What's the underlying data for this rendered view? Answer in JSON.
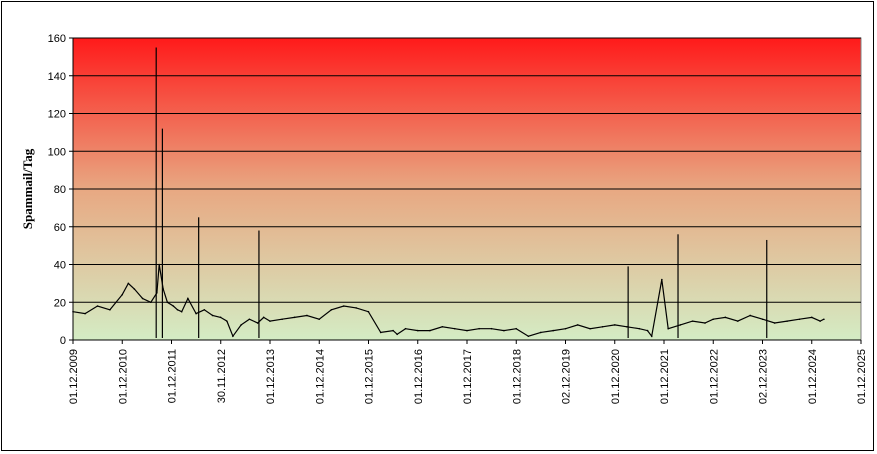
{
  "chart_data": {
    "type": "line",
    "title": "",
    "xlabel": "",
    "ylabel": "Spammail/Tag",
    "ylim": [
      0,
      160
    ],
    "yticks": [
      0,
      20,
      40,
      60,
      80,
      100,
      120,
      140,
      160
    ],
    "xlim": [
      "2009-12-01",
      "2025-12-01"
    ],
    "xtick_labels": [
      "01.12.2009",
      "01.12.2010",
      "01.12.2011",
      "30.11.2012",
      "01.12.2013",
      "01.12.2014",
      "01.12.2015",
      "01.12.2016",
      "01.12.2017",
      "01.12.2018",
      "02.12.2019",
      "01.12.2020",
      "01.12.2021",
      "01.12.2022",
      "02.12.2023",
      "01.12.2024",
      "01.12.2025"
    ],
    "grid": true,
    "legend": "none",
    "background_gradient": {
      "top": "#ff1a1a",
      "middle": "#e8a882",
      "bottom": "#d4ecc4"
    },
    "line_color": "#000000",
    "series": [
      {
        "name": "",
        "x": [
          "2009-12-01",
          "2010-03-01",
          "2010-06-01",
          "2010-09-01",
          "2010-12-01",
          "2011-01-15",
          "2011-03-01",
          "2011-05-01",
          "2011-07-01",
          "2011-08-15",
          "2011-09-01",
          "2011-10-01",
          "2011-11-01",
          "2011-12-15",
          "2012-01-15",
          "2012-02-15",
          "2012-04-01",
          "2012-06-01",
          "2012-08-01",
          "2012-10-01",
          "2012-11-30",
          "2013-01-15",
          "2013-03-01",
          "2013-05-01",
          "2013-07-01",
          "2013-09-01",
          "2013-10-15",
          "2013-12-01",
          "2014-03-01",
          "2014-06-01",
          "2014-09-01",
          "2014-12-01",
          "2015-03-01",
          "2015-06-01",
          "2015-09-01",
          "2015-12-01",
          "2016-03-01",
          "2016-06-01",
          "2016-07-01",
          "2016-09-01",
          "2016-12-01",
          "2017-03-01",
          "2017-06-01",
          "2017-09-01",
          "2017-12-01",
          "2018-03-01",
          "2018-06-01",
          "2018-09-01",
          "2018-12-01",
          "2019-03-01",
          "2019-06-01",
          "2019-09-01",
          "2019-12-02",
          "2020-03-01",
          "2020-06-01",
          "2020-09-01",
          "2020-12-01",
          "2021-03-01",
          "2021-06-01",
          "2021-08-01",
          "2021-09-01",
          "2021-11-15",
          "2022-01-01",
          "2022-04-01",
          "2022-07-01",
          "2022-10-01",
          "2022-12-01",
          "2023-03-01",
          "2023-06-01",
          "2023-09-01",
          "2023-12-02",
          "2024-03-01",
          "2024-06-01",
          "2024-09-01",
          "2024-12-01",
          "2025-02-01",
          "2025-03-01"
        ],
        "values": [
          15,
          14,
          18,
          16,
          24,
          30,
          27,
          22,
          20,
          25,
          40,
          27,
          20,
          18,
          16,
          15,
          22,
          14,
          16,
          13,
          12,
          10,
          2,
          8,
          11,
          9,
          12,
          10,
          11,
          12,
          13,
          11,
          16,
          18,
          17,
          15,
          4,
          5,
          3,
          6,
          5,
          5,
          7,
          6,
          5,
          6,
          6,
          5,
          6,
          2,
          4,
          5,
          6,
          8,
          6,
          7,
          8,
          7,
          6,
          5,
          2,
          32,
          6,
          8,
          10,
          9,
          11,
          12,
          10,
          13,
          11,
          9,
          10,
          11,
          12,
          10,
          11
        ]
      }
    ],
    "peaks": [
      {
        "x": "2011-08-10",
        "y": 155
      },
      {
        "x": "2011-09-25",
        "y": 112
      },
      {
        "x": "2012-06-20",
        "y": 65
      },
      {
        "x": "2013-09-10",
        "y": 58
      },
      {
        "x": "2022-03-15",
        "y": 56
      },
      {
        "x": "2024-01-02",
        "y": 53
      },
      {
        "x": "2021-03-10",
        "y": 39
      }
    ]
  }
}
